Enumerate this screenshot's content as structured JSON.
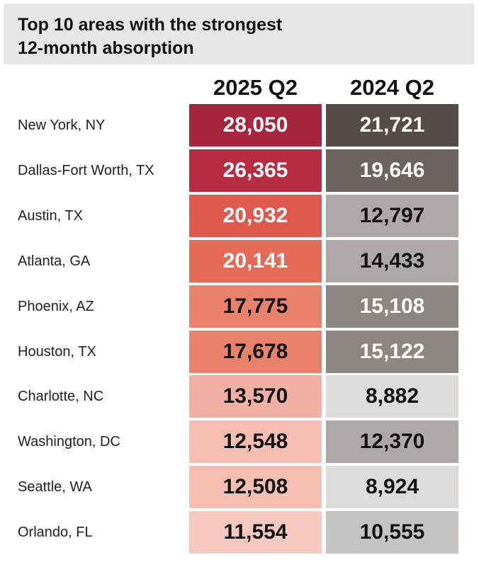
{
  "title_line1": "Top 10 areas with the strongest",
  "title_line2": "12-month absorption",
  "chart_data": {
    "type": "table",
    "title": "Top 10 areas with the strongest 12-month absorption",
    "columns": [
      "2025 Q2",
      "2024 Q2"
    ],
    "rows": [
      {
        "area": "New York, NY",
        "q2_2025": "28,050",
        "q2_2024": "21,721",
        "v2025": 28050,
        "v2024": 21721
      },
      {
        "area": "Dallas-Fort Worth, TX",
        "q2_2025": "26,365",
        "q2_2024": "19,646",
        "v2025": 26365,
        "v2024": 19646
      },
      {
        "area": "Austin, TX",
        "q2_2025": "20,932",
        "q2_2024": "12,797",
        "v2025": 20932,
        "v2024": 12797
      },
      {
        "area": "Atlanta, GA",
        "q2_2025": "20,141",
        "q2_2024": "14,433",
        "v2025": 20141,
        "v2024": 14433
      },
      {
        "area": "Phoenix, AZ",
        "q2_2025": "17,775",
        "q2_2024": "15,108",
        "v2025": 17775,
        "v2024": 15108
      },
      {
        "area": "Houston, TX",
        "q2_2025": "17,678",
        "q2_2024": "15,122",
        "v2025": 17678,
        "v2024": 15122
      },
      {
        "area": "Charlotte, NC",
        "q2_2025": "13,570",
        "q2_2024": "8,882",
        "v2025": 13570,
        "v2024": 8882
      },
      {
        "area": "Washington, DC",
        "q2_2025": "12,548",
        "q2_2024": "12,370",
        "v2025": 12548,
        "v2024": 12370
      },
      {
        "area": "Seattle, WA",
        "q2_2025": "12,508",
        "q2_2024": "8,924",
        "v2025": 12508,
        "v2024": 8924
      },
      {
        "area": "Orlando, FL",
        "q2_2025": "11,554",
        "q2_2024": "10,555",
        "v2025": 11554,
        "v2024": 10555
      }
    ],
    "colors": {
      "q2_2025": [
        "#a8253e",
        "#b82c42",
        "#dd5a4c",
        "#e56b57",
        "#e8826a",
        "#e8826a",
        "#f2b0a5",
        "#f4beb3",
        "#f4beb3",
        "#f6c8bf"
      ],
      "q2_2024": [
        "#554b48",
        "#6c6360",
        "#aea9a6",
        "#aea9a6",
        "#8c8683",
        "#8c8683",
        "#dedbd9",
        "#aea9a6",
        "#dedbd9",
        "#c7c3c0"
      ],
      "text_2025": [
        "#ffffff",
        "#ffffff",
        "#ffffff",
        "#ffffff",
        "#111111",
        "#111111",
        "#111111",
        "#111111",
        "#111111",
        "#111111"
      ],
      "text_2024": [
        "#ffffff",
        "#ffffff",
        "#111111",
        "#111111",
        "#ffffff",
        "#ffffff",
        "#111111",
        "#111111",
        "#111111",
        "#111111"
      ]
    }
  }
}
